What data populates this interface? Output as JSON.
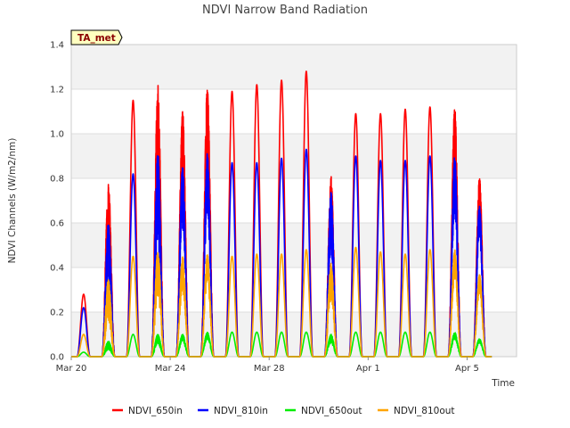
{
  "chart_data": {
    "type": "line",
    "title": "NDVI Narrow Band Radiation",
    "xlabel": "Time",
    "ylabel": "NDVI Channels (W/m2/nm)",
    "ylim": [
      0.0,
      1.4
    ],
    "yticks": [
      "0.0",
      "0.2",
      "0.4",
      "0.6",
      "0.8",
      "1.0",
      "1.2",
      "1.4"
    ],
    "xlim_days": [
      0,
      18
    ],
    "xticks": [
      {
        "day": 0,
        "label": "Mar 20"
      },
      {
        "day": 4,
        "label": "Mar 24"
      },
      {
        "day": 8,
        "label": "Mar 28"
      },
      {
        "day": 12,
        "label": "Apr 1"
      },
      {
        "day": 16,
        "label": "Apr 5"
      }
    ],
    "badge": "TA_met",
    "daily_noon_day_offset": 0.5,
    "series": [
      {
        "name": "NDVI_650in",
        "color": "#ff0000",
        "daily_peaks": [
          0.28,
          0.79,
          1.15,
          1.23,
          1.11,
          1.22,
          1.19,
          1.22,
          1.24,
          1.28,
          0.81,
          1.09,
          1.09,
          1.11,
          1.12,
          1.13,
          0.81
        ]
      },
      {
        "name": "NDVI_810in",
        "color": "#0000ff",
        "daily_peaks": [
          0.22,
          0.6,
          0.82,
          0.92,
          0.86,
          0.92,
          0.87,
          0.87,
          0.89,
          0.93,
          0.74,
          0.9,
          0.88,
          0.88,
          0.9,
          0.9,
          0.68
        ]
      },
      {
        "name": "NDVI_650out",
        "color": "#00ee00",
        "daily_peaks": [
          0.02,
          0.07,
          0.1,
          0.1,
          0.1,
          0.11,
          0.11,
          0.11,
          0.11,
          0.11,
          0.1,
          0.11,
          0.11,
          0.11,
          0.11,
          0.11,
          0.08
        ]
      },
      {
        "name": "NDVI_810out",
        "color": "#ffa500",
        "daily_peaks": [
          0.1,
          0.35,
          0.45,
          0.48,
          0.45,
          0.46,
          0.45,
          0.46,
          0.46,
          0.48,
          0.42,
          0.49,
          0.47,
          0.46,
          0.48,
          0.48,
          0.37
        ]
      }
    ]
  }
}
